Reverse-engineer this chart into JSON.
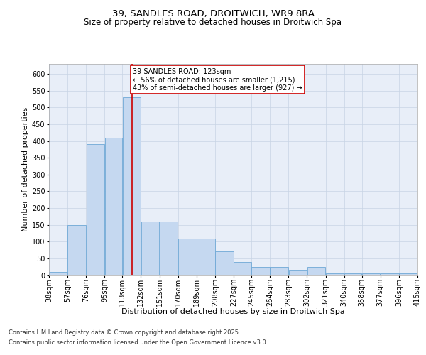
{
  "title1": "39, SANDLES ROAD, DROITWICH, WR9 8RA",
  "title2": "Size of property relative to detached houses in Droitwich Spa",
  "xlabel": "Distribution of detached houses by size in Droitwich Spa",
  "ylabel": "Number of detached properties",
  "bin_edges": [
    38,
    57,
    76,
    95,
    113,
    132,
    151,
    170,
    189,
    208,
    227,
    245,
    264,
    283,
    302,
    321,
    340,
    358,
    377,
    396,
    415
  ],
  "bin_labels": [
    "38sqm",
    "57sqm",
    "76sqm",
    "95sqm",
    "113sqm",
    "132sqm",
    "151sqm",
    "170sqm",
    "189sqm",
    "208sqm",
    "227sqm",
    "245sqm",
    "264sqm",
    "283sqm",
    "302sqm",
    "321sqm",
    "340sqm",
    "358sqm",
    "377sqm",
    "396sqm",
    "415sqm"
  ],
  "bar_values": [
    10,
    150,
    390,
    410,
    530,
    160,
    160,
    110,
    110,
    70,
    40,
    25,
    25,
    15,
    25,
    5,
    5,
    5,
    5,
    5
  ],
  "bar_color": "#c5d8f0",
  "bar_edge_color": "#6fa8d6",
  "grid_color": "#c8d4e4",
  "background_color": "#e8eef8",
  "property_line_x": 123,
  "annotation_text": "39 SANDLES ROAD: 123sqm\n← 56% of detached houses are smaller (1,215)\n43% of semi-detached houses are larger (927) →",
  "annotation_box_color": "#ffffff",
  "annotation_box_edge": "#cc0000",
  "red_line_color": "#cc0000",
  "footer_line1": "Contains HM Land Registry data © Crown copyright and database right 2025.",
  "footer_line2": "Contains public sector information licensed under the Open Government Licence v3.0.",
  "ylim": [
    0,
    630
  ],
  "yticks": [
    0,
    50,
    100,
    150,
    200,
    250,
    300,
    350,
    400,
    450,
    500,
    550,
    600
  ],
  "title1_fontsize": 9.5,
  "title2_fontsize": 8.5,
  "xlabel_fontsize": 8,
  "ylabel_fontsize": 8,
  "tick_fontsize": 7,
  "annotation_fontsize": 7,
  "footer_fontsize": 6
}
